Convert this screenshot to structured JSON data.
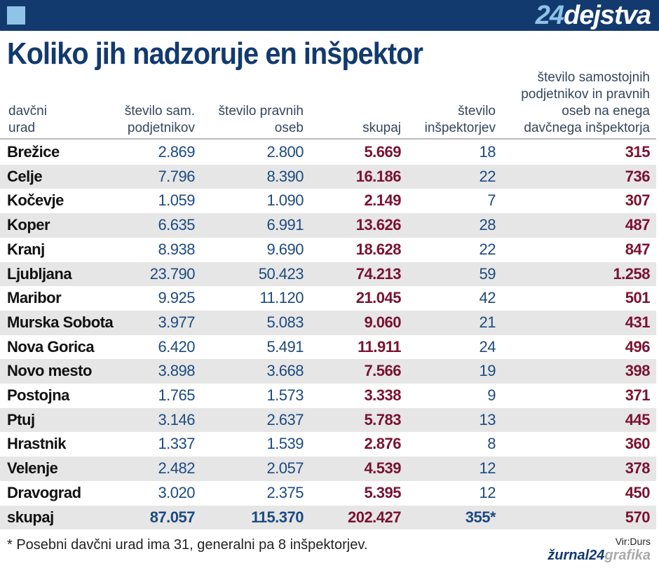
{
  "header": {
    "logo_number": "24",
    "logo_text": "dejstva"
  },
  "title": "Koliko jih nadzoruje en inšpektor",
  "table": {
    "columns": [
      [
        "davčni",
        "urad"
      ],
      [
        "število sam.",
        "podjetnikov"
      ],
      [
        "število pravnih",
        "oseb"
      ],
      [
        "skupaj"
      ],
      [
        "število",
        "inšpektorjev"
      ],
      [
        "število samostojnih",
        "podjetnikov in pravnih",
        "oseb na enega",
        "davčnega inšpektorja"
      ]
    ],
    "rows": [
      [
        "Brežice",
        "2.869",
        "2.800",
        "5.669",
        "18",
        "315"
      ],
      [
        "Celje",
        "7.796",
        "8.390",
        "16.186",
        "22",
        "736"
      ],
      [
        "Kočevje",
        "1.059",
        "1.090",
        "2.149",
        "7",
        "307"
      ],
      [
        "Koper",
        "6.635",
        "6.991",
        "13.626",
        "28",
        "487"
      ],
      [
        "Kranj",
        "8.938",
        "9.690",
        "18.628",
        "22",
        "847"
      ],
      [
        "Ljubljana",
        "23.790",
        "50.423",
        "74.213",
        "59",
        "1.258"
      ],
      [
        "Maribor",
        "9.925",
        "11.120",
        "21.045",
        "42",
        "501"
      ],
      [
        "Murska Sobota",
        "3.977",
        "5.083",
        "9.060",
        "21",
        "431"
      ],
      [
        "Nova Gorica",
        "6.420",
        "5.491",
        "11.911",
        "24",
        "496"
      ],
      [
        "Novo mesto",
        "3.898",
        "3.668",
        "7.566",
        "19",
        "398"
      ],
      [
        "Postojna",
        "1.765",
        "1.573",
        "3.338",
        "9",
        "371"
      ],
      [
        "Ptuj",
        "3.146",
        "2.637",
        "5.783",
        "13",
        "445"
      ],
      [
        "Hrastnik",
        "1.337",
        "1.539",
        "2.876",
        "8",
        "360"
      ],
      [
        "Velenje",
        "2.482",
        "2.057",
        "4.539",
        "12",
        "378"
      ],
      [
        "Dravograd",
        "3.020",
        "2.375",
        "5.395",
        "12",
        "450"
      ],
      [
        "skupaj",
        "87.057",
        "115.370",
        "202.427",
        "355*",
        "570"
      ]
    ]
  },
  "footnote": "* Posebni davčni urad ima 31, generalni pa 8 inšpektorjev.",
  "source": "Vir:Durs",
  "brand": {
    "part1": "žurnal24",
    "part2": "grafika"
  }
}
